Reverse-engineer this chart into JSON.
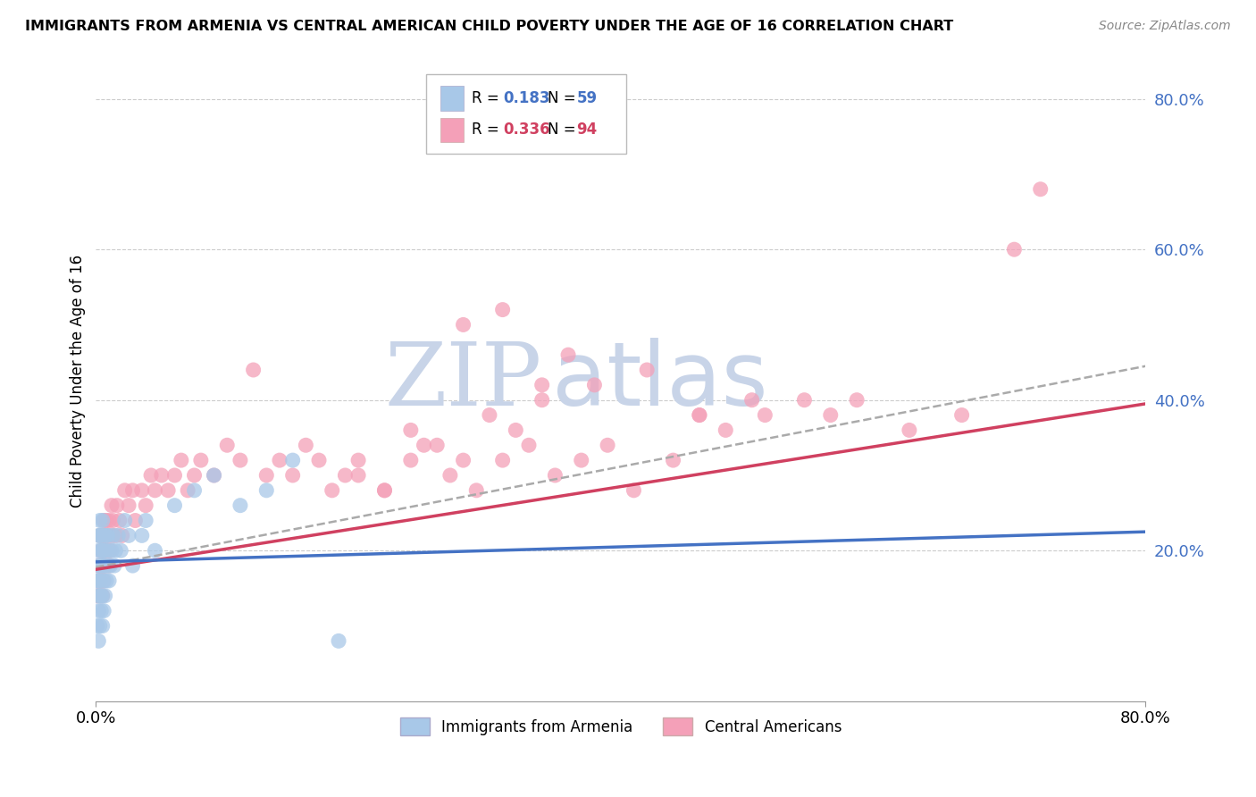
{
  "title": "IMMIGRANTS FROM ARMENIA VS CENTRAL AMERICAN CHILD POVERTY UNDER THE AGE OF 16 CORRELATION CHART",
  "source": "Source: ZipAtlas.com",
  "ylabel": "Child Poverty Under the Age of 16",
  "xlim": [
    0.0,
    0.8
  ],
  "ylim": [
    0.0,
    0.85
  ],
  "yticks": [
    0.0,
    0.2,
    0.4,
    0.6,
    0.8
  ],
  "xticks": [
    0.0,
    0.8
  ],
  "xtick_labels": [
    "0.0%",
    "80.0%"
  ],
  "ytick_labels": [
    "",
    "20.0%",
    "40.0%",
    "60.0%",
    "80.0%"
  ],
  "color_blue": "#a8c8e8",
  "color_pink": "#f4a0b8",
  "line_blue": "#4472c4",
  "line_pink": "#d04060",
  "line_dashed": "#aaaaaa",
  "watermark_zip": "ZIP",
  "watermark_atlas": "atlas",
  "watermark_color": "#c8d4e8",
  "background_color": "#ffffff",
  "armenia_x": [
    0.001,
    0.001,
    0.001,
    0.001,
    0.002,
    0.002,
    0.002,
    0.002,
    0.002,
    0.003,
    0.003,
    0.003,
    0.003,
    0.003,
    0.003,
    0.004,
    0.004,
    0.004,
    0.004,
    0.004,
    0.005,
    0.005,
    0.005,
    0.005,
    0.005,
    0.006,
    0.006,
    0.006,
    0.006,
    0.006,
    0.007,
    0.007,
    0.007,
    0.008,
    0.008,
    0.009,
    0.009,
    0.01,
    0.01,
    0.011,
    0.012,
    0.013,
    0.014,
    0.015,
    0.017,
    0.019,
    0.022,
    0.025,
    0.028,
    0.035,
    0.038,
    0.045,
    0.06,
    0.075,
    0.09,
    0.11,
    0.13,
    0.15,
    0.185
  ],
  "armenia_y": [
    0.1,
    0.14,
    0.16,
    0.18,
    0.08,
    0.12,
    0.16,
    0.2,
    0.22,
    0.1,
    0.14,
    0.16,
    0.18,
    0.22,
    0.24,
    0.12,
    0.14,
    0.18,
    0.2,
    0.22,
    0.1,
    0.14,
    0.18,
    0.2,
    0.24,
    0.12,
    0.16,
    0.18,
    0.2,
    0.22,
    0.14,
    0.18,
    0.2,
    0.16,
    0.22,
    0.18,
    0.22,
    0.16,
    0.2,
    0.18,
    0.2,
    0.22,
    0.18,
    0.2,
    0.22,
    0.2,
    0.24,
    0.22,
    0.18,
    0.22,
    0.24,
    0.2,
    0.26,
    0.28,
    0.3,
    0.26,
    0.28,
    0.32,
    0.08
  ],
  "central_x": [
    0.001,
    0.002,
    0.002,
    0.003,
    0.003,
    0.003,
    0.004,
    0.004,
    0.005,
    0.005,
    0.005,
    0.006,
    0.006,
    0.006,
    0.007,
    0.007,
    0.008,
    0.008,
    0.009,
    0.01,
    0.01,
    0.011,
    0.012,
    0.012,
    0.013,
    0.015,
    0.016,
    0.018,
    0.02,
    0.022,
    0.025,
    0.028,
    0.03,
    0.035,
    0.038,
    0.042,
    0.045,
    0.05,
    0.055,
    0.06,
    0.065,
    0.07,
    0.075,
    0.08,
    0.09,
    0.1,
    0.11,
    0.12,
    0.13,
    0.14,
    0.15,
    0.16,
    0.17,
    0.18,
    0.19,
    0.2,
    0.22,
    0.24,
    0.25,
    0.27,
    0.29,
    0.31,
    0.33,
    0.35,
    0.37,
    0.39,
    0.41,
    0.44,
    0.46,
    0.48,
    0.51,
    0.54,
    0.56,
    0.58,
    0.62,
    0.66,
    0.7,
    0.72,
    0.28,
    0.31,
    0.34,
    0.42,
    0.46,
    0.5,
    0.38,
    0.36,
    0.34,
    0.32,
    0.3,
    0.28,
    0.26,
    0.24,
    0.22,
    0.2
  ],
  "central_y": [
    0.14,
    0.16,
    0.18,
    0.14,
    0.18,
    0.22,
    0.16,
    0.2,
    0.14,
    0.18,
    0.22,
    0.16,
    0.2,
    0.24,
    0.18,
    0.22,
    0.2,
    0.24,
    0.22,
    0.18,
    0.24,
    0.2,
    0.22,
    0.26,
    0.24,
    0.22,
    0.26,
    0.24,
    0.22,
    0.28,
    0.26,
    0.28,
    0.24,
    0.28,
    0.26,
    0.3,
    0.28,
    0.3,
    0.28,
    0.3,
    0.32,
    0.28,
    0.3,
    0.32,
    0.3,
    0.34,
    0.32,
    0.44,
    0.3,
    0.32,
    0.3,
    0.34,
    0.32,
    0.28,
    0.3,
    0.32,
    0.28,
    0.32,
    0.34,
    0.3,
    0.28,
    0.32,
    0.34,
    0.3,
    0.32,
    0.34,
    0.28,
    0.32,
    0.38,
    0.36,
    0.38,
    0.4,
    0.38,
    0.4,
    0.36,
    0.38,
    0.6,
    0.68,
    0.5,
    0.52,
    0.42,
    0.44,
    0.38,
    0.4,
    0.42,
    0.46,
    0.4,
    0.36,
    0.38,
    0.32,
    0.34,
    0.36,
    0.28,
    0.3
  ],
  "line_blue_y0": 0.185,
  "line_blue_y1": 0.225,
  "line_pink_y0": 0.175,
  "line_pink_y1": 0.395,
  "line_dash_y0": 0.178,
  "line_dash_y1": 0.445
}
